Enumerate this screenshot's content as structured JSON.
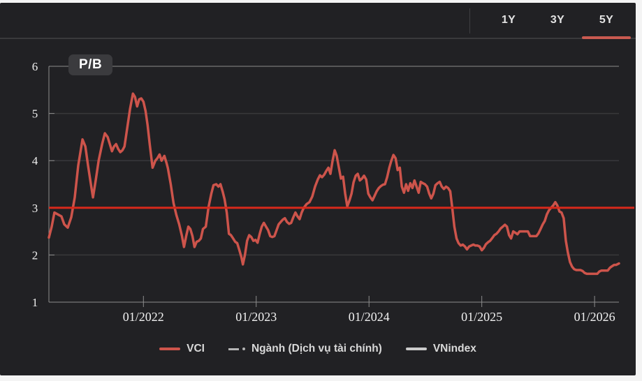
{
  "header": {
    "tabs": [
      {
        "label": "1Y",
        "active": false
      },
      {
        "label": "3Y",
        "active": false
      },
      {
        "label": "5Y",
        "active": true
      }
    ]
  },
  "colors": {
    "page_bg": "#f4f4f4",
    "panel_bg": "#212124",
    "grid": "#38383b",
    "axis": "#8d8d8d",
    "tick_text": "#f0f0f0",
    "vci_line": "#cd544b",
    "median_line": "#d7291b",
    "active_tab_underline": "#c95a50",
    "title_badge_bg": "#3b3b3e"
  },
  "chart_data": {
    "type": "line",
    "title": "P/B",
    "xlabel": "",
    "ylabel": "",
    "ylim": [
      1,
      6
    ],
    "xlim": [
      2021.162,
      2026.216
    ],
    "grid": "horizontal",
    "legend_position": "bottom-center",
    "yticks": [
      1,
      2,
      3,
      4,
      5,
      6
    ],
    "xticks": [
      {
        "t": 2022,
        "label": "01/2022"
      },
      {
        "t": 2023,
        "label": "01/2023"
      },
      {
        "t": 2024,
        "label": "01/2024"
      },
      {
        "t": 2025,
        "label": "01/2025"
      },
      {
        "t": 2026,
        "label": "01/2026"
      }
    ],
    "median_line": {
      "value": 3.0,
      "color": "#d7291b"
    },
    "legend": [
      {
        "label": "VCI",
        "marker": "line",
        "color": "#cd544b"
      },
      {
        "label": "Ngành (Dịch vụ tài chính)",
        "marker": "dash-dot",
        "color": "#b5b5b5"
      },
      {
        "label": "VNindex",
        "marker": "line",
        "color": "#cbcbcb"
      }
    ],
    "series": [
      {
        "name": "VCI",
        "color": "#cd544b",
        "points": [
          [
            2021.162,
            2.37
          ],
          [
            2021.187,
            2.6
          ],
          [
            2021.211,
            2.9
          ],
          [
            2021.249,
            2.85
          ],
          [
            2021.273,
            2.82
          ],
          [
            2021.298,
            2.65
          ],
          [
            2021.329,
            2.58
          ],
          [
            2021.36,
            2.8
          ],
          [
            2021.391,
            3.22
          ],
          [
            2021.422,
            3.9
          ],
          [
            2021.46,
            4.45
          ],
          [
            2021.485,
            4.3
          ],
          [
            2021.509,
            3.9
          ],
          [
            2021.534,
            3.5
          ],
          [
            2021.553,
            3.22
          ],
          [
            2021.578,
            3.6
          ],
          [
            2021.603,
            4.0
          ],
          [
            2021.634,
            4.35
          ],
          [
            2021.658,
            4.58
          ],
          [
            2021.683,
            4.5
          ],
          [
            2021.702,
            4.35
          ],
          [
            2021.721,
            4.2
          ],
          [
            2021.739,
            4.3
          ],
          [
            2021.758,
            4.35
          ],
          [
            2021.776,
            4.25
          ],
          [
            2021.795,
            4.18
          ],
          [
            2021.814,
            4.22
          ],
          [
            2021.832,
            4.3
          ],
          [
            2021.857,
            4.7
          ],
          [
            2021.882,
            5.1
          ],
          [
            2021.907,
            5.42
          ],
          [
            2021.925,
            5.35
          ],
          [
            2021.944,
            5.15
          ],
          [
            2021.963,
            5.3
          ],
          [
            2021.981,
            5.32
          ],
          [
            2022.0,
            5.25
          ],
          [
            2022.019,
            5.05
          ],
          [
            2022.037,
            4.75
          ],
          [
            2022.056,
            4.35
          ],
          [
            2022.081,
            3.85
          ],
          [
            2022.106,
            4.0
          ],
          [
            2022.124,
            4.05
          ],
          [
            2022.143,
            4.13
          ],
          [
            2022.161,
            4.0
          ],
          [
            2022.186,
            4.1
          ],
          [
            2022.205,
            3.95
          ],
          [
            2022.217,
            3.84
          ],
          [
            2022.242,
            3.5
          ],
          [
            2022.267,
            3.1
          ],
          [
            2022.292,
            2.85
          ],
          [
            2022.317,
            2.65
          ],
          [
            2022.342,
            2.4
          ],
          [
            2022.36,
            2.17
          ],
          [
            2022.379,
            2.4
          ],
          [
            2022.398,
            2.6
          ],
          [
            2022.416,
            2.55
          ],
          [
            2022.435,
            2.4
          ],
          [
            2022.453,
            2.17
          ],
          [
            2022.472,
            2.28
          ],
          [
            2022.491,
            2.3
          ],
          [
            2022.509,
            2.35
          ],
          [
            2022.528,
            2.55
          ],
          [
            2022.553,
            2.6
          ],
          [
            2022.578,
            3.02
          ],
          [
            2022.602,
            3.3
          ],
          [
            2022.621,
            3.48
          ],
          [
            2022.646,
            3.5
          ],
          [
            2022.665,
            3.45
          ],
          [
            2022.683,
            3.5
          ],
          [
            2022.702,
            3.35
          ],
          [
            2022.72,
            3.18
          ],
          [
            2022.739,
            2.9
          ],
          [
            2022.758,
            2.45
          ],
          [
            2022.776,
            2.42
          ],
          [
            2022.795,
            2.35
          ],
          [
            2022.814,
            2.28
          ],
          [
            2022.832,
            2.25
          ],
          [
            2022.851,
            2.1
          ],
          [
            2022.869,
            1.95
          ],
          [
            2022.882,
            1.8
          ],
          [
            2022.9,
            2.0
          ],
          [
            2022.919,
            2.3
          ],
          [
            2022.938,
            2.42
          ],
          [
            2022.956,
            2.38
          ],
          [
            2022.975,
            2.3
          ],
          [
            2022.994,
            2.32
          ],
          [
            2023.012,
            2.26
          ],
          [
            2023.031,
            2.45
          ],
          [
            2023.049,
            2.6
          ],
          [
            2023.068,
            2.68
          ],
          [
            2023.087,
            2.6
          ],
          [
            2023.105,
            2.53
          ],
          [
            2023.124,
            2.4
          ],
          [
            2023.143,
            2.38
          ],
          [
            2023.161,
            2.4
          ],
          [
            2023.18,
            2.52
          ],
          [
            2023.199,
            2.65
          ],
          [
            2023.217,
            2.7
          ],
          [
            2023.236,
            2.75
          ],
          [
            2023.254,
            2.78
          ],
          [
            2023.273,
            2.7
          ],
          [
            2023.292,
            2.66
          ],
          [
            2023.31,
            2.68
          ],
          [
            2023.329,
            2.8
          ],
          [
            2023.348,
            2.9
          ],
          [
            2023.366,
            2.82
          ],
          [
            2023.385,
            2.76
          ],
          [
            2023.403,
            2.9
          ],
          [
            2023.422,
            3.0
          ],
          [
            2023.447,
            3.08
          ],
          [
            2023.472,
            3.12
          ],
          [
            2023.497,
            3.24
          ],
          [
            2023.522,
            3.45
          ],
          [
            2023.546,
            3.6
          ],
          [
            2023.565,
            3.69
          ],
          [
            2023.584,
            3.65
          ],
          [
            2023.602,
            3.7
          ],
          [
            2023.621,
            3.78
          ],
          [
            2023.64,
            3.85
          ],
          [
            2023.658,
            3.72
          ],
          [
            2023.677,
            4.0
          ],
          [
            2023.696,
            4.22
          ],
          [
            2023.714,
            4.1
          ],
          [
            2023.733,
            3.85
          ],
          [
            2023.751,
            3.62
          ],
          [
            2023.77,
            3.66
          ],
          [
            2023.789,
            3.3
          ],
          [
            2023.807,
            3.03
          ],
          [
            2023.826,
            3.15
          ],
          [
            2023.845,
            3.3
          ],
          [
            2023.863,
            3.54
          ],
          [
            2023.882,
            3.68
          ],
          [
            2023.9,
            3.72
          ],
          [
            2023.919,
            3.58
          ],
          [
            2023.938,
            3.62
          ],
          [
            2023.956,
            3.68
          ],
          [
            2023.975,
            3.6
          ],
          [
            2023.994,
            3.3
          ],
          [
            2024.012,
            3.22
          ],
          [
            2024.031,
            3.16
          ],
          [
            2024.049,
            3.25
          ],
          [
            2024.068,
            3.35
          ],
          [
            2024.087,
            3.42
          ],
          [
            2024.105,
            3.46
          ],
          [
            2024.124,
            3.49
          ],
          [
            2024.142,
            3.5
          ],
          [
            2024.161,
            3.65
          ],
          [
            2024.18,
            3.85
          ],
          [
            2024.198,
            4.0
          ],
          [
            2024.217,
            4.12
          ],
          [
            2024.236,
            4.05
          ],
          [
            2024.254,
            3.8
          ],
          [
            2024.273,
            3.85
          ],
          [
            2024.291,
            3.45
          ],
          [
            2024.31,
            3.32
          ],
          [
            2024.329,
            3.5
          ],
          [
            2024.347,
            3.36
          ],
          [
            2024.366,
            3.52
          ],
          [
            2024.385,
            3.42
          ],
          [
            2024.403,
            3.58
          ],
          [
            2024.422,
            3.45
          ],
          [
            2024.44,
            3.32
          ],
          [
            2024.459,
            3.55
          ],
          [
            2024.478,
            3.52
          ],
          [
            2024.496,
            3.5
          ],
          [
            2024.515,
            3.45
          ],
          [
            2024.534,
            3.3
          ],
          [
            2024.552,
            3.2
          ],
          [
            2024.571,
            3.3
          ],
          [
            2024.589,
            3.48
          ],
          [
            2024.608,
            3.52
          ],
          [
            2024.627,
            3.55
          ],
          [
            2024.645,
            3.45
          ],
          [
            2024.664,
            3.4
          ],
          [
            2024.683,
            3.45
          ],
          [
            2024.701,
            3.42
          ],
          [
            2024.72,
            3.35
          ],
          [
            2024.738,
            3.0
          ],
          [
            2024.757,
            2.6
          ],
          [
            2024.776,
            2.35
          ],
          [
            2024.794,
            2.25
          ],
          [
            2024.813,
            2.2
          ],
          [
            2024.832,
            2.22
          ],
          [
            2024.85,
            2.18
          ],
          [
            2024.869,
            2.12
          ],
          [
            2024.888,
            2.18
          ],
          [
            2024.906,
            2.2
          ],
          [
            2024.925,
            2.22
          ],
          [
            2024.943,
            2.2
          ],
          [
            2024.962,
            2.2
          ],
          [
            2024.981,
            2.18
          ],
          [
            2025.0,
            2.1
          ],
          [
            2025.018,
            2.15
          ],
          [
            2025.037,
            2.23
          ],
          [
            2025.056,
            2.27
          ],
          [
            2025.074,
            2.3
          ],
          [
            2025.093,
            2.36
          ],
          [
            2025.111,
            2.42
          ],
          [
            2025.13,
            2.45
          ],
          [
            2025.149,
            2.5
          ],
          [
            2025.167,
            2.56
          ],
          [
            2025.186,
            2.6
          ],
          [
            2025.205,
            2.64
          ],
          [
            2025.223,
            2.6
          ],
          [
            2025.242,
            2.42
          ],
          [
            2025.26,
            2.35
          ],
          [
            2025.279,
            2.5
          ],
          [
            2025.298,
            2.47
          ],
          [
            2025.316,
            2.44
          ],
          [
            2025.335,
            2.5
          ],
          [
            2025.354,
            2.5
          ],
          [
            2025.372,
            2.5
          ],
          [
            2025.391,
            2.5
          ],
          [
            2025.409,
            2.5
          ],
          [
            2025.428,
            2.4
          ],
          [
            2025.447,
            2.4
          ],
          [
            2025.465,
            2.4
          ],
          [
            2025.484,
            2.4
          ],
          [
            2025.503,
            2.46
          ],
          [
            2025.521,
            2.55
          ],
          [
            2025.54,
            2.65
          ],
          [
            2025.558,
            2.72
          ],
          [
            2025.577,
            2.86
          ],
          [
            2025.596,
            2.95
          ],
          [
            2025.614,
            3.0
          ],
          [
            2025.633,
            3.05
          ],
          [
            2025.652,
            3.12
          ],
          [
            2025.67,
            3.05
          ],
          [
            2025.689,
            2.92
          ],
          [
            2025.707,
            2.9
          ],
          [
            2025.726,
            2.78
          ],
          [
            2025.745,
            2.3
          ],
          [
            2025.763,
            2.05
          ],
          [
            2025.782,
            1.85
          ],
          [
            2025.801,
            1.75
          ],
          [
            2025.819,
            1.7
          ],
          [
            2025.838,
            1.68
          ],
          [
            2025.856,
            1.68
          ],
          [
            2025.875,
            1.68
          ],
          [
            2025.894,
            1.66
          ],
          [
            2025.912,
            1.62
          ],
          [
            2025.931,
            1.6
          ],
          [
            2025.95,
            1.6
          ],
          [
            2025.968,
            1.6
          ],
          [
            2025.987,
            1.6
          ],
          [
            2026.005,
            1.6
          ],
          [
            2026.024,
            1.6
          ],
          [
            2026.042,
            1.65
          ],
          [
            2026.061,
            1.67
          ],
          [
            2026.08,
            1.67
          ],
          [
            2026.098,
            1.67
          ],
          [
            2026.117,
            1.67
          ],
          [
            2026.136,
            1.73
          ],
          [
            2026.154,
            1.76
          ],
          [
            2026.173,
            1.79
          ],
          [
            2026.192,
            1.79
          ],
          [
            2026.216,
            1.82
          ]
        ]
      }
    ]
  }
}
